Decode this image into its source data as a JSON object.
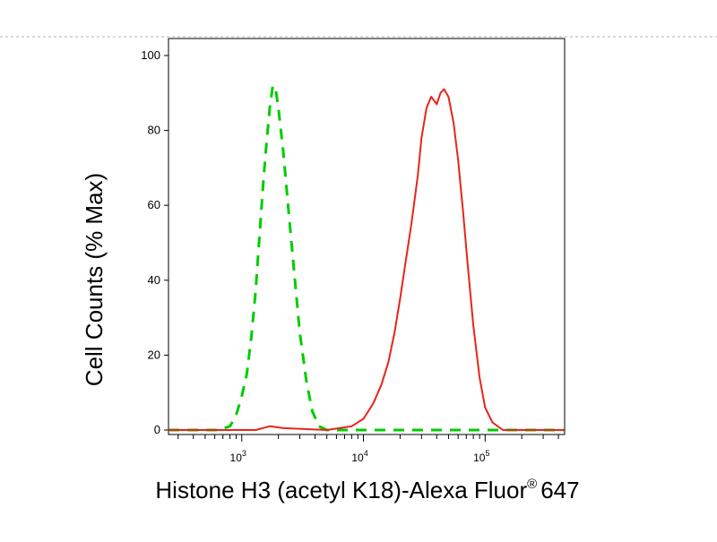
{
  "chart_data": {
    "type": "line",
    "title": "",
    "xlabel": "Histone H3 (acetyl K18)-Alexa Fluor",
    "xlabel_superscript": "®",
    "xlabel_suffix": "647",
    "ylabel": "Cell Counts (% Max)",
    "x_scale": "log",
    "xlim": [
      250,
      450000
    ],
    "ylim": [
      0,
      100
    ],
    "grid": false,
    "y_ticks": [
      0,
      20,
      40,
      60,
      80,
      100
    ],
    "y_tick_labels": [
      "0",
      "20",
      "40",
      "60",
      "80",
      "100"
    ],
    "x_major_ticks": [
      1000,
      10000,
      100000
    ],
    "x_tick_labels": [
      {
        "base": "10",
        "exp": "3"
      },
      {
        "base": "10",
        "exp": "4"
      },
      {
        "base": "10",
        "exp": "5"
      }
    ],
    "series": [
      {
        "color": "#00cc00",
        "dash": "dashed",
        "points": [
          [
            250,
            0
          ],
          [
            650,
            0
          ],
          [
            800,
            1
          ],
          [
            900,
            4
          ],
          [
            1000,
            9
          ],
          [
            1100,
            15
          ],
          [
            1200,
            25
          ],
          [
            1300,
            37
          ],
          [
            1400,
            52
          ],
          [
            1500,
            66
          ],
          [
            1600,
            77
          ],
          [
            1700,
            86
          ],
          [
            1800,
            92
          ],
          [
            1900,
            91
          ],
          [
            2000,
            86
          ],
          [
            2200,
            74
          ],
          [
            2400,
            60
          ],
          [
            2700,
            42
          ],
          [
            3000,
            26
          ],
          [
            3400,
            13
          ],
          [
            3800,
            5
          ],
          [
            4300,
            1
          ],
          [
            5000,
            0
          ],
          [
            450000,
            0
          ]
        ]
      },
      {
        "color": "#e8241c",
        "dash": "solid",
        "points": [
          [
            250,
            0
          ],
          [
            1300,
            0
          ],
          [
            1700,
            1
          ],
          [
            2200,
            0.5
          ],
          [
            5000,
            0
          ],
          [
            8000,
            1
          ],
          [
            10000,
            3
          ],
          [
            12000,
            7
          ],
          [
            14000,
            12
          ],
          [
            16000,
            18
          ],
          [
            18000,
            26
          ],
          [
            20000,
            35
          ],
          [
            22000,
            44
          ],
          [
            25000,
            56
          ],
          [
            28000,
            68
          ],
          [
            30000,
            78
          ],
          [
            33000,
            86
          ],
          [
            36000,
            89
          ],
          [
            40000,
            87
          ],
          [
            43000,
            90
          ],
          [
            46000,
            91
          ],
          [
            50000,
            89
          ],
          [
            55000,
            82
          ],
          [
            60000,
            72
          ],
          [
            66000,
            58
          ],
          [
            72000,
            44
          ],
          [
            80000,
            28
          ],
          [
            90000,
            14
          ],
          [
            100000,
            6
          ],
          [
            115000,
            2
          ],
          [
            140000,
            0
          ],
          [
            450000,
            0
          ]
        ]
      }
    ]
  }
}
